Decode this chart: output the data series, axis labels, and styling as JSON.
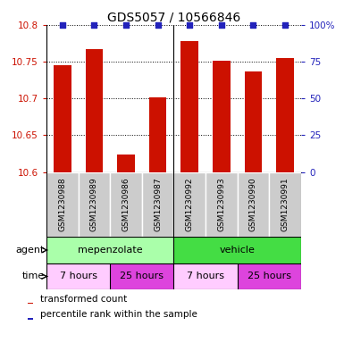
{
  "title": "GDS5057 / 10566846",
  "samples": [
    "GSM1230988",
    "GSM1230989",
    "GSM1230986",
    "GSM1230987",
    "GSM1230992",
    "GSM1230993",
    "GSM1230990",
    "GSM1230991"
  ],
  "bar_values": [
    10.745,
    10.767,
    10.624,
    10.701,
    10.778,
    10.751,
    10.736,
    10.754
  ],
  "percentile_values": [
    100,
    100,
    100,
    100,
    100,
    100,
    100,
    100
  ],
  "ylim_left": [
    10.6,
    10.8
  ],
  "yticks_left": [
    10.6,
    10.65,
    10.7,
    10.75,
    10.8
  ],
  "yticks_right": [
    0,
    25,
    50,
    75,
    100
  ],
  "ylim_right": [
    0,
    100
  ],
  "bar_color": "#cc1100",
  "percentile_color": "#2222bb",
  "agent_groups": [
    {
      "label": "mepenzolate",
      "start": 0,
      "end": 4,
      "color": "#aaffaa"
    },
    {
      "label": "vehicle",
      "start": 4,
      "end": 8,
      "color": "#44dd44"
    }
  ],
  "time_groups": [
    {
      "label": "7 hours",
      "start": 0,
      "end": 2,
      "color": "#ffccff"
    },
    {
      "label": "25 hours",
      "start": 2,
      "end": 4,
      "color": "#dd44dd"
    },
    {
      "label": "7 hours",
      "start": 4,
      "end": 6,
      "color": "#ffccff"
    },
    {
      "label": "25 hours",
      "start": 6,
      "end": 8,
      "color": "#dd44dd"
    }
  ],
  "legend_items": [
    {
      "label": "transformed count",
      "color": "#cc1100"
    },
    {
      "label": "percentile rank within the sample",
      "color": "#2222bb"
    }
  ],
  "axis_color_left": "#cc1100",
  "axis_color_right": "#2222bb",
  "sample_box_color": "#cccccc",
  "title_fontsize": 10,
  "tick_fontsize": 7.5,
  "sample_fontsize": 6.5,
  "row_fontsize": 8,
  "legend_fontsize": 7.5
}
